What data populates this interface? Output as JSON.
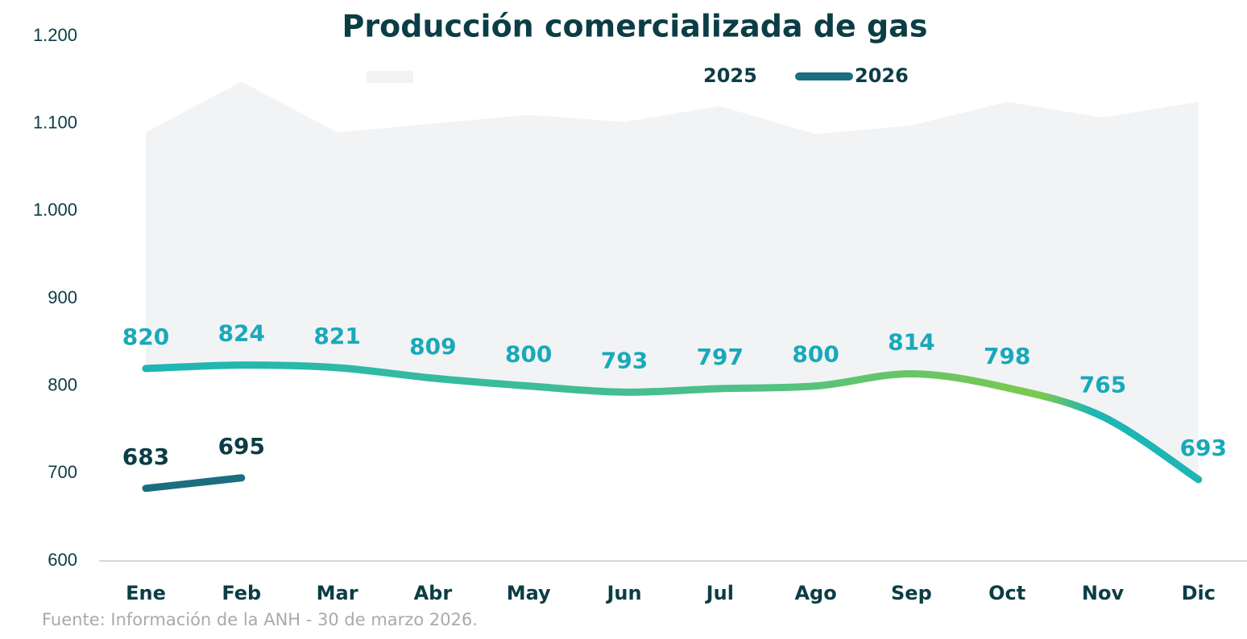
{
  "chart_data": {
    "type": "line",
    "title": "Producción comercializada de gas",
    "categories": [
      "Ene",
      "Feb",
      "Mar",
      "Abr",
      "May",
      "Jun",
      "Jul",
      "Ago",
      "Sep",
      "Oct",
      "Nov",
      "Dic"
    ],
    "area": {
      "color": "#f2f3f5",
      "values": [
        1090,
        1148,
        1090,
        1100,
        1110,
        1102,
        1120,
        1088,
        1098,
        1125,
        1107,
        1125
      ]
    },
    "series": [
      {
        "name": "2025",
        "color": "#2bb8a6",
        "label_color": "#19a9b9",
        "values": [
          820,
          824,
          821,
          809,
          800,
          793,
          797,
          800,
          814,
          798,
          765,
          693
        ]
      },
      {
        "name": "2026",
        "color": "#1a6e80",
        "label_color": "#0b3d45",
        "values": [
          683,
          695,
          null,
          null,
          null,
          null,
          null,
          null,
          null,
          null,
          null,
          null
        ]
      }
    ],
    "ylim": [
      600,
      1200
    ],
    "yticks": [
      600,
      700,
      800,
      900,
      {
        "value": 1000,
        "label": "1.000"
      },
      {
        "value": 1100,
        "label": "1.100"
      },
      {
        "value": 1200,
        "label": "1.200"
      }
    ],
    "grid": false,
    "legend": "top",
    "source": "Fuente: Información de la ANH - 30 de marzo 2026."
  }
}
